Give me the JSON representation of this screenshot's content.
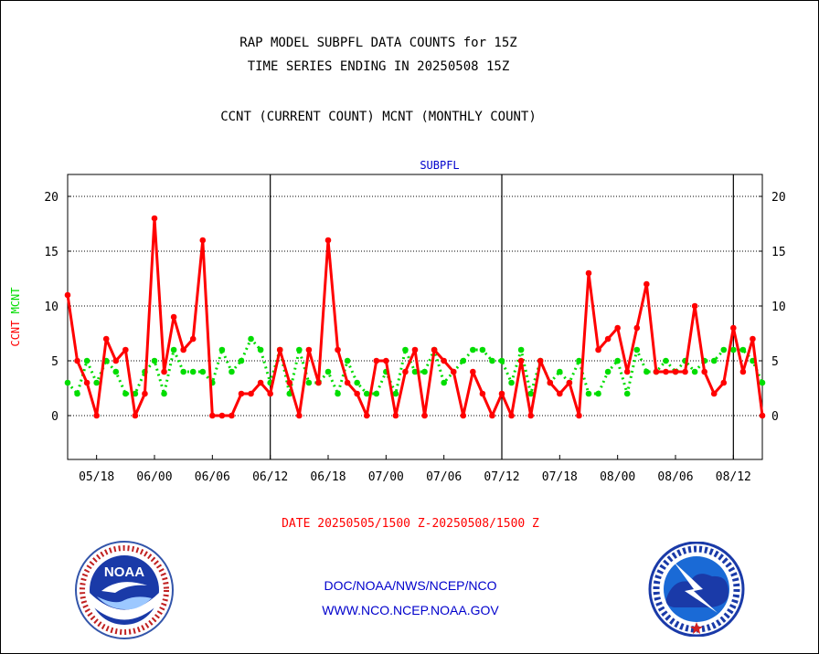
{
  "header": {
    "title_line1": "RAP MODEL SUBPFL DATA COUNTS for 15Z",
    "title_line2": "TIME SERIES ENDING IN 20250508 15Z",
    "subtitle": "CCNT (CURRENT COUNT) MCNT (MONTHLY COUNT)"
  },
  "footer": {
    "date_range": "DATE 20250505/1500 Z-20250508/1500 Z",
    "link1": "DOC/NOAA/NWS/NCEP/NCO",
    "link2": "WWW.NCO.NCEP.NOAA.GOV"
  },
  "logos": {
    "left_name": "noaa-logo",
    "left_text": "NOAA",
    "right_name": "national-weather-service-logo"
  },
  "chart_data": {
    "type": "line",
    "title": "SUBPFL",
    "ylabel_left": [
      "CCNT",
      "MCNT"
    ],
    "ylim": [
      -4,
      22
    ],
    "yticks": [
      0,
      5,
      10,
      15,
      20
    ],
    "xlim": [
      0,
      72
    ],
    "xtick_labels": [
      "05/18",
      "06/00",
      "06/06",
      "06/12",
      "06/18",
      "07/00",
      "07/06",
      "07/12",
      "07/18",
      "08/00",
      "08/06",
      "08/12"
    ],
    "xtick_positions": [
      3,
      9,
      15,
      21,
      27,
      33,
      39,
      45,
      51,
      57,
      63,
      69
    ],
    "day_boundaries": [
      21,
      45,
      69
    ],
    "grid": true,
    "colors": {
      "CCNT": "#ff0000",
      "MCNT": "#00dd00",
      "axis_blue": "#0000cc"
    },
    "series": [
      {
        "name": "CCNT",
        "x": [
          0,
          1,
          2,
          3,
          4,
          5,
          6,
          7,
          8,
          9,
          10,
          11,
          12,
          13,
          14,
          15,
          16,
          17,
          18,
          19,
          20,
          21,
          22,
          23,
          24,
          25,
          26,
          27,
          28,
          29,
          30,
          31,
          32,
          33,
          34,
          35,
          36,
          37,
          38,
          39,
          40,
          41,
          42,
          43,
          44,
          45,
          46,
          47,
          48,
          49,
          50,
          51,
          52,
          53,
          54,
          55,
          56,
          57,
          58,
          59,
          60,
          61,
          62,
          63,
          64,
          65,
          66,
          67,
          68,
          69,
          70,
          71,
          72
        ],
        "values": [
          11,
          5,
          3,
          0,
          7,
          5,
          6,
          0,
          2,
          18,
          4,
          9,
          6,
          7,
          16,
          0,
          0,
          0,
          2,
          2,
          3,
          2,
          6,
          3,
          0,
          6,
          3,
          16,
          6,
          3,
          2,
          0,
          5,
          5,
          0,
          4,
          6,
          0,
          6,
          5,
          4,
          0,
          4,
          2,
          0,
          2,
          0,
          5,
          0,
          5,
          3,
          2,
          3,
          0,
          13,
          6,
          7,
          8,
          4,
          8,
          12,
          4,
          4,
          4,
          4,
          10,
          4,
          2,
          3,
          8,
          4,
          7,
          0
        ]
      },
      {
        "name": "MCNT",
        "x": [
          0,
          1,
          2,
          3,
          4,
          5,
          6,
          7,
          8,
          9,
          10,
          11,
          12,
          13,
          14,
          15,
          16,
          17,
          18,
          19,
          20,
          21,
          22,
          23,
          24,
          25,
          26,
          27,
          28,
          29,
          30,
          31,
          32,
          33,
          34,
          35,
          36,
          37,
          38,
          39,
          40,
          41,
          42,
          43,
          44,
          45,
          46,
          47,
          48,
          49,
          50,
          51,
          52,
          53,
          54,
          55,
          56,
          57,
          58,
          59,
          60,
          61,
          62,
          63,
          64,
          65,
          66,
          67,
          68,
          69,
          70,
          71,
          72
        ],
        "values": [
          3,
          2,
          5,
          3,
          5,
          4,
          2,
          2,
          4,
          5,
          2,
          6,
          4,
          4,
          4,
          3,
          6,
          4,
          5,
          7,
          6,
          3,
          6,
          2,
          6,
          3,
          3,
          4,
          2,
          5,
          3,
          2,
          2,
          4,
          2,
          6,
          4,
          4,
          6,
          3,
          4,
          5,
          6,
          6,
          5,
          5,
          3,
          6,
          2,
          5,
          3,
          4,
          3,
          5,
          2,
          2,
          4,
          5,
          2,
          6,
          4,
          4,
          5,
          4,
          5,
          4,
          5,
          5,
          6,
          6,
          6,
          5,
          3
        ]
      }
    ]
  }
}
